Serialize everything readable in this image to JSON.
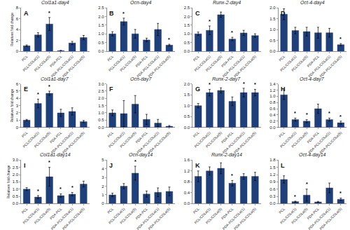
{
  "chart_data": [
    {
      "type": "bar",
      "title": "Col1a1-day4",
      "ylabel": "Relatives fold change",
      "color": "#1f3f7a",
      "grid": false,
      "categories": [
        "PCL",
        "PCL/COLα(1)",
        "PCL/COLα(5)",
        "PDA-PCL",
        "PDA-PCL/COLα(1)",
        "PDA-PCL/COLα(5)"
      ],
      "values": [
        1.0,
        3.0,
        5.0,
        0.1,
        1.5,
        2.5
      ],
      "errors": [
        0.15,
        0.4,
        1.2,
        0.05,
        0.3,
        0.4
      ],
      "annotations": [
        {
          "text": "A"
        },
        {
          "text": "*",
          "category": "PCL/COLα(5)"
        }
      ],
      "ylim": [
        0,
        8
      ],
      "yticks": [
        0,
        2,
        4,
        6,
        8
      ]
    },
    {
      "type": "bar",
      "title": "Ocn-day4",
      "color": "#1f3f7a",
      "grid": false,
      "categories": [
        "PCL",
        "PCL/COLα(1)",
        "PCL/COLα(5)",
        "PDA-PCL",
        "PDA-PCL/COLα(1)",
        "PDA-PCL/COLα(5)"
      ],
      "values": [
        1.0,
        1.7,
        1.0,
        0.65,
        1.25,
        0.35
      ],
      "errors": [
        0.12,
        0.2,
        0.25,
        0.1,
        0.35,
        0.05
      ],
      "annotations": [
        {
          "text": "B"
        },
        {
          "text": "*",
          "category": "PCL/COLα(1)"
        },
        {
          "text": "*",
          "category": "PDA-PCL/COLα(5)"
        }
      ],
      "ylim": [
        0,
        2.5
      ],
      "yticks": [
        {
          "value": 0,
          "label": "0.0"
        },
        0.5,
        {
          "value": 1.0,
          "label": "1.0"
        },
        1.5,
        {
          "value": 2.0,
          "label": "2.0"
        },
        2.5
      ]
    },
    {
      "type": "bar",
      "title": "Runx-2-day4",
      "color": "#1f3f7a",
      "grid": false,
      "categories": [
        "PCL",
        "PCL/COLα(1)",
        "PCL/COLα(5)",
        "PDA-PCL",
        "PDA-PCL/COLα(1)",
        "PDA-PCL/COLα(5)"
      ],
      "values": [
        1.0,
        1.2,
        2.1,
        0.7,
        1.05,
        0.9
      ],
      "errors": [
        0.1,
        0.25,
        0.15,
        0.1,
        0.15,
        0.1
      ],
      "annotations": [
        {
          "text": "C"
        },
        {
          "text": "*",
          "category": "PCL/COLα(1)"
        },
        {
          "text": "*",
          "category": "PDA-PCL"
        }
      ],
      "ylim": [
        0,
        2.5
      ],
      "yticks": [
        {
          "value": 0,
          "label": "0.0"
        },
        0.5,
        {
          "value": 1.0,
          "label": "1.0"
        },
        1.5,
        {
          "value": 2.0,
          "label": "2.0"
        },
        2.5
      ]
    },
    {
      "type": "bar",
      "title": "Oct-4-day4",
      "color": "#1f3f7a",
      "grid": false,
      "categories": [
        "PCL",
        "PCL/COLα(1)",
        "PCL/COLα(5)",
        "PDA-PCL",
        "PDA-PCL/COLα(1)",
        "PDA-PCL/COLα(5)"
      ],
      "values": [
        1.7,
        0.95,
        0.9,
        0.85,
        0.85,
        0.3
      ],
      "errors": [
        0.25,
        0.15,
        0.2,
        0.25,
        0.2,
        0.05
      ],
      "annotations": [
        {
          "text": "D"
        },
        {
          "text": "*",
          "category": "PDA-PCL/COLα(5)"
        }
      ],
      "ylim": [
        0,
        2.0
      ],
      "yticks": [
        {
          "value": 0,
          "label": "0.0"
        },
        0.5,
        {
          "value": 1.0,
          "label": "1.0"
        },
        1.5,
        {
          "value": 2.0,
          "label": "2.0"
        }
      ]
    },
    {
      "type": "bar",
      "title": "Col1a1-day7",
      "ylabel": "Relatives fold change",
      "color": "#1f3f7a",
      "grid": false,
      "categories": [
        "PCL",
        "PCL/COLα(1)",
        "PCL/COLα(5)",
        "PDA-PCL",
        "PDA-PCL/COLα(1)",
        "PDA-PCL/COLα(5)"
      ],
      "values": [
        1.0,
        3.3,
        4.7,
        2.0,
        2.2,
        0.8
      ],
      "errors": [
        0.1,
        0.6,
        0.3,
        0.5,
        0.5,
        0.15
      ],
      "annotations": [
        {
          "text": "E"
        },
        {
          "text": "*",
          "category": "PCL/COLα(1)"
        },
        {
          "text": "*",
          "category": "PCL/COLα(5)"
        }
      ],
      "ylim": [
        0,
        6
      ],
      "yticks": [
        0,
        1,
        2,
        3,
        4,
        5,
        6
      ]
    },
    {
      "type": "bar",
      "title": "Ocn-day7",
      "color": "#1f3f7a",
      "grid": false,
      "categories": [
        "PCL",
        "PCL/COLα(1)",
        "PCL/COLα(5)",
        "PDA-PCL",
        "PDA-PCL/COLα(1)",
        "PDA-PCL/COLα(5)"
      ],
      "values": [
        1.0,
        0.95,
        1.6,
        0.55,
        0.3,
        0.08
      ],
      "errors": [
        0.2,
        0.9,
        0.6,
        0.35,
        0.25,
        0.05
      ],
      "annotations": [
        {
          "text": "F"
        }
      ],
      "ylim": [
        0,
        3.0
      ],
      "yticks": [
        {
          "value": 0,
          "label": "0.0"
        },
        0.5,
        {
          "value": 1.0,
          "label": "1.0"
        },
        1.5,
        {
          "value": 2.0,
          "label": "2.0"
        },
        2.5,
        {
          "value": 3.0,
          "label": "3.0"
        }
      ]
    },
    {
      "type": "bar",
      "title": "Runx-2-day7",
      "color": "#1f3f7a",
      "grid": false,
      "categories": [
        "PCL",
        "PCL/COLα(1)",
        "PCL/COLα(5)",
        "PDA-PCL",
        "PDA-PCL/COLα(1)",
        "PDA-PCL/COLα(5)"
      ],
      "values": [
        1.0,
        1.6,
        1.7,
        1.2,
        1.6,
        1.6
      ],
      "errors": [
        0.1,
        0.15,
        0.12,
        0.2,
        0.2,
        0.15
      ],
      "annotations": [
        {
          "text": "G"
        },
        {
          "text": "*",
          "category": "PCL/COLα(1)"
        },
        {
          "text": "*",
          "category": "PDA-PCL/COLα(1)"
        },
        {
          "text": "*",
          "category": "PDA-PCL/COLα(5)"
        }
      ],
      "ylim": [
        0,
        2.0
      ],
      "yticks": [
        {
          "value": 0,
          "label": "0.0"
        },
        0.5,
        {
          "value": 1.0,
          "label": "1.0"
        },
        1.5,
        {
          "value": 2.0,
          "label": "2.0"
        }
      ]
    },
    {
      "type": "bar",
      "title": "Oct-4-day7",
      "color": "#1f3f7a",
      "grid": false,
      "categories": [
        "PCL",
        "PCL/COLα(1)",
        "PCL/COLα(5)",
        "PDA-PCL",
        "PDA-PCL/COLα(1)",
        "PDA-PCL/COLα(5)"
      ],
      "values": [
        1.05,
        0.25,
        0.2,
        0.6,
        0.25,
        0.15
      ],
      "errors": [
        0.15,
        0.05,
        0.05,
        0.15,
        0.05,
        0.05
      ],
      "annotations": [
        {
          "text": "H"
        },
        {
          "text": "*",
          "category": "PCL/COLα(1)"
        },
        {
          "text": "*",
          "category": "PCL/COLα(5)"
        },
        {
          "text": "*",
          "category": "PDA-PCL/COLα(1)"
        },
        {
          "text": "*",
          "category": "PDA-PCL/COLα(5)"
        }
      ],
      "ylim": [
        0,
        1.4
      ],
      "yticks": [
        {
          "value": 0,
          "label": "0.0"
        },
        0.2,
        0.4,
        0.6,
        0.8,
        {
          "value": 1.0,
          "label": "1.0"
        },
        1.2,
        1.4
      ]
    },
    {
      "type": "bar",
      "title": "Col1a1-day14",
      "ylabel": "Relatives fold change",
      "color": "#1f3f7a",
      "grid": false,
      "categories": [
        "PCL",
        "PCL/COLα(1)",
        "PCL/COLα(5)",
        "PDA-PCL",
        "PDA-PCL/COLα(1)",
        "PDA-PCL/COLα(5)"
      ],
      "values": [
        1.0,
        0.45,
        1.85,
        0.55,
        0.65,
        1.35
      ],
      "errors": [
        0.1,
        0.1,
        0.65,
        0.12,
        0.12,
        0.2
      ],
      "annotations": [
        {
          "text": "I"
        },
        {
          "text": "*",
          "category": "PCL/COLα(1)"
        },
        {
          "text": "*",
          "category": "PCL/COLα(5)"
        },
        {
          "text": "*",
          "category": "PDA-PCL"
        },
        {
          "text": "*",
          "category": "PDA-PCL/COLα(1)"
        }
      ],
      "ylim": [
        0,
        3.0
      ],
      "yticks": [
        {
          "value": 0,
          "label": "0.0"
        },
        0.5,
        {
          "value": 1.0,
          "label": "1.0"
        },
        1.5,
        {
          "value": 2.0,
          "label": "2.0"
        },
        2.5,
        {
          "value": 3.0,
          "label": "3.0"
        }
      ]
    },
    {
      "type": "bar",
      "title": "Ocn-day14",
      "color": "#1f3f7a",
      "grid": false,
      "categories": [
        "PCL",
        "PCL/COLα(1)",
        "PCL/COLα(5)",
        "PDA-PCL",
        "PDA-PCL/COLα(1)",
        "PDA-PCL/COLα(5)"
      ],
      "values": [
        1.0,
        2.0,
        3.5,
        1.1,
        1.3,
        1.4
      ],
      "errors": [
        0.2,
        0.3,
        0.8,
        0.35,
        0.5,
        0.5
      ],
      "annotations": [
        {
          "text": "J"
        },
        {
          "text": "*",
          "category": "PCL/COLα(5)"
        }
      ],
      "ylim": [
        0,
        5.0
      ],
      "yticks": [
        0,
        1,
        2,
        3,
        4,
        5
      ]
    },
    {
      "type": "bar",
      "title": "Runx-2-day14",
      "color": "#1f3f7a",
      "grid": false,
      "categories": [
        "PCL",
        "PCL/COLα(1)",
        "PCL/COLα(5)",
        "PDA-PCL",
        "PDA-PCL/COLα(1)",
        "PDA-PCL/COLα(5)"
      ],
      "values": [
        1.0,
        1.2,
        1.3,
        0.75,
        1.0,
        1.0
      ],
      "errors": [
        0.2,
        0.15,
        0.2,
        0.1,
        0.1,
        0.15
      ],
      "annotations": [
        {
          "text": "K"
        },
        {
          "text": "*",
          "category": "PDA-PCL"
        }
      ],
      "ylim": [
        0,
        1.6
      ],
      "yticks": [
        {
          "value": 0,
          "label": "0.0"
        },
        0.4,
        0.8,
        1.2,
        1.6
      ]
    },
    {
      "type": "bar",
      "title": "Oct-4-day14",
      "color": "#1f3f7a",
      "grid": false,
      "categories": [
        "PCL",
        "PCL/COLα(1)",
        "PCL/COLα(5)",
        "PDA-PCL",
        "PDA-PCL/COLα(1)",
        "PDA-PCL/COLα(5)"
      ],
      "values": [
        1.0,
        0.08,
        0.35,
        0.07,
        0.65,
        0.18
      ],
      "errors": [
        0.15,
        0.02,
        0.25,
        0.02,
        0.2,
        0.05
      ],
      "annotations": [
        {
          "text": "L"
        },
        {
          "text": "*",
          "category": "PCL/COLα(1)"
        },
        {
          "text": "*",
          "category": "PCL/COLα(5)"
        },
        {
          "text": "*",
          "category": "PDA-PCL/COLα(5)"
        }
      ],
      "ylim": [
        0,
        1.8
      ],
      "yticks": [
        {
          "value": 0,
          "label": "0.0"
        },
        0.3,
        0.6,
        0.9,
        1.2,
        1.5,
        1.8
      ]
    }
  ]
}
